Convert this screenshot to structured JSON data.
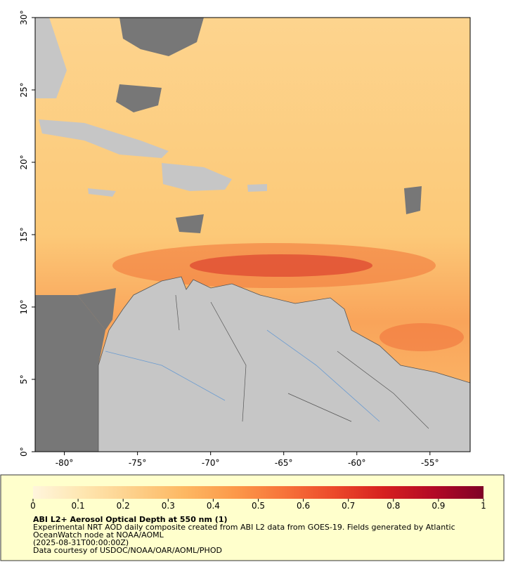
{
  "map": {
    "lonlim": [
      -82,
      -52.25
    ],
    "latlim": [
      0,
      30
    ],
    "lonticks": [
      {
        "value": -80,
        "label": "-80°"
      },
      {
        "value": -75,
        "label": "-75°"
      },
      {
        "value": -70,
        "label": "-70°"
      },
      {
        "value": -65,
        "label": "-65°"
      },
      {
        "value": -60,
        "label": "-60°"
      },
      {
        "value": -55,
        "label": "-55°"
      }
    ],
    "latticks": [
      {
        "value": 0,
        "label": "0°"
      },
      {
        "value": 5,
        "label": "5°"
      },
      {
        "value": 10,
        "label": "10°"
      },
      {
        "value": 15,
        "label": "15°"
      },
      {
        "value": 20,
        "label": "20°"
      },
      {
        "value": 25,
        "label": "25°"
      },
      {
        "value": 30,
        "label": "30°"
      }
    ]
  },
  "colorbar": {
    "lim": [
      0,
      1
    ],
    "ticks": [
      0,
      0.1,
      0.2,
      0.3,
      0.4,
      0.5,
      0.6,
      0.7,
      0.8,
      0.9,
      1
    ],
    "colors": [
      "#fff5dc",
      "#fee6b0",
      "#fdd08a",
      "#fdb863",
      "#fc9a4a",
      "#f7743a",
      "#ec4a2b",
      "#d6201f",
      "#b30a26",
      "#7f0026"
    ]
  },
  "caption": {
    "title": "ABI L2+ Aerosol Optical Depth at 550 nm (1)",
    "lines": [
      "Experimental NRT AOD daily composite created from ABI L2 data from GOES-19. Fields generated by Atlantic",
      "OceanWatch node at NOAA/AOML",
      "(2025-08-31T00:00:00Z)",
      "Data courtesy of USDOC/NOAA/OAR/AOML/PHOD"
    ]
  }
}
